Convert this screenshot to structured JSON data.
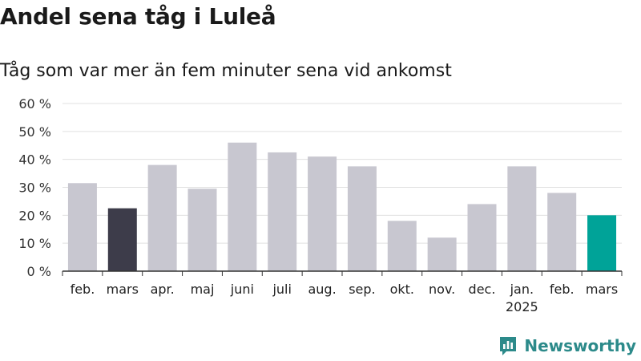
{
  "header": {
    "title": "Andel sena tåg i Luleå",
    "subtitle": "Tåg som var mer än fem minuter sena vid ankomst"
  },
  "brand": {
    "name": "Newsworthy"
  },
  "colors": {
    "default_bar": "#c8c7d0",
    "highlight_previous": "#3d3c4a",
    "highlight_current": "#00a398",
    "grid": "#e0e0e0",
    "brand": "#2c8a8a"
  },
  "chart_data": {
    "type": "bar",
    "categories": [
      "feb.",
      "mars",
      "apr.",
      "maj",
      "juni",
      "juli",
      "aug.",
      "sep.",
      "okt.",
      "nov.",
      "dec.",
      "jan.",
      "feb.",
      "mars"
    ],
    "category_sublabels": [
      "",
      "",
      "",
      "",
      "",
      "",
      "",
      "",
      "",
      "",
      "",
      "2025",
      "",
      ""
    ],
    "values": [
      31.5,
      22.5,
      38,
      29.5,
      46,
      42.5,
      41,
      37.5,
      18,
      12,
      24,
      37.5,
      28,
      20
    ],
    "highlight": [
      "none",
      "previous",
      "none",
      "none",
      "none",
      "none",
      "none",
      "none",
      "none",
      "none",
      "none",
      "none",
      "none",
      "current"
    ],
    "y_ticks": [
      0,
      10,
      20,
      30,
      40,
      50,
      60
    ],
    "y_tick_labels": [
      "0 %",
      "10 %",
      "20 %",
      "30 %",
      "40 %",
      "50 %",
      "60 %"
    ],
    "ylim": [
      0,
      60
    ],
    "grid": true,
    "legend": "none",
    "xlabel": "",
    "ylabel": ""
  }
}
